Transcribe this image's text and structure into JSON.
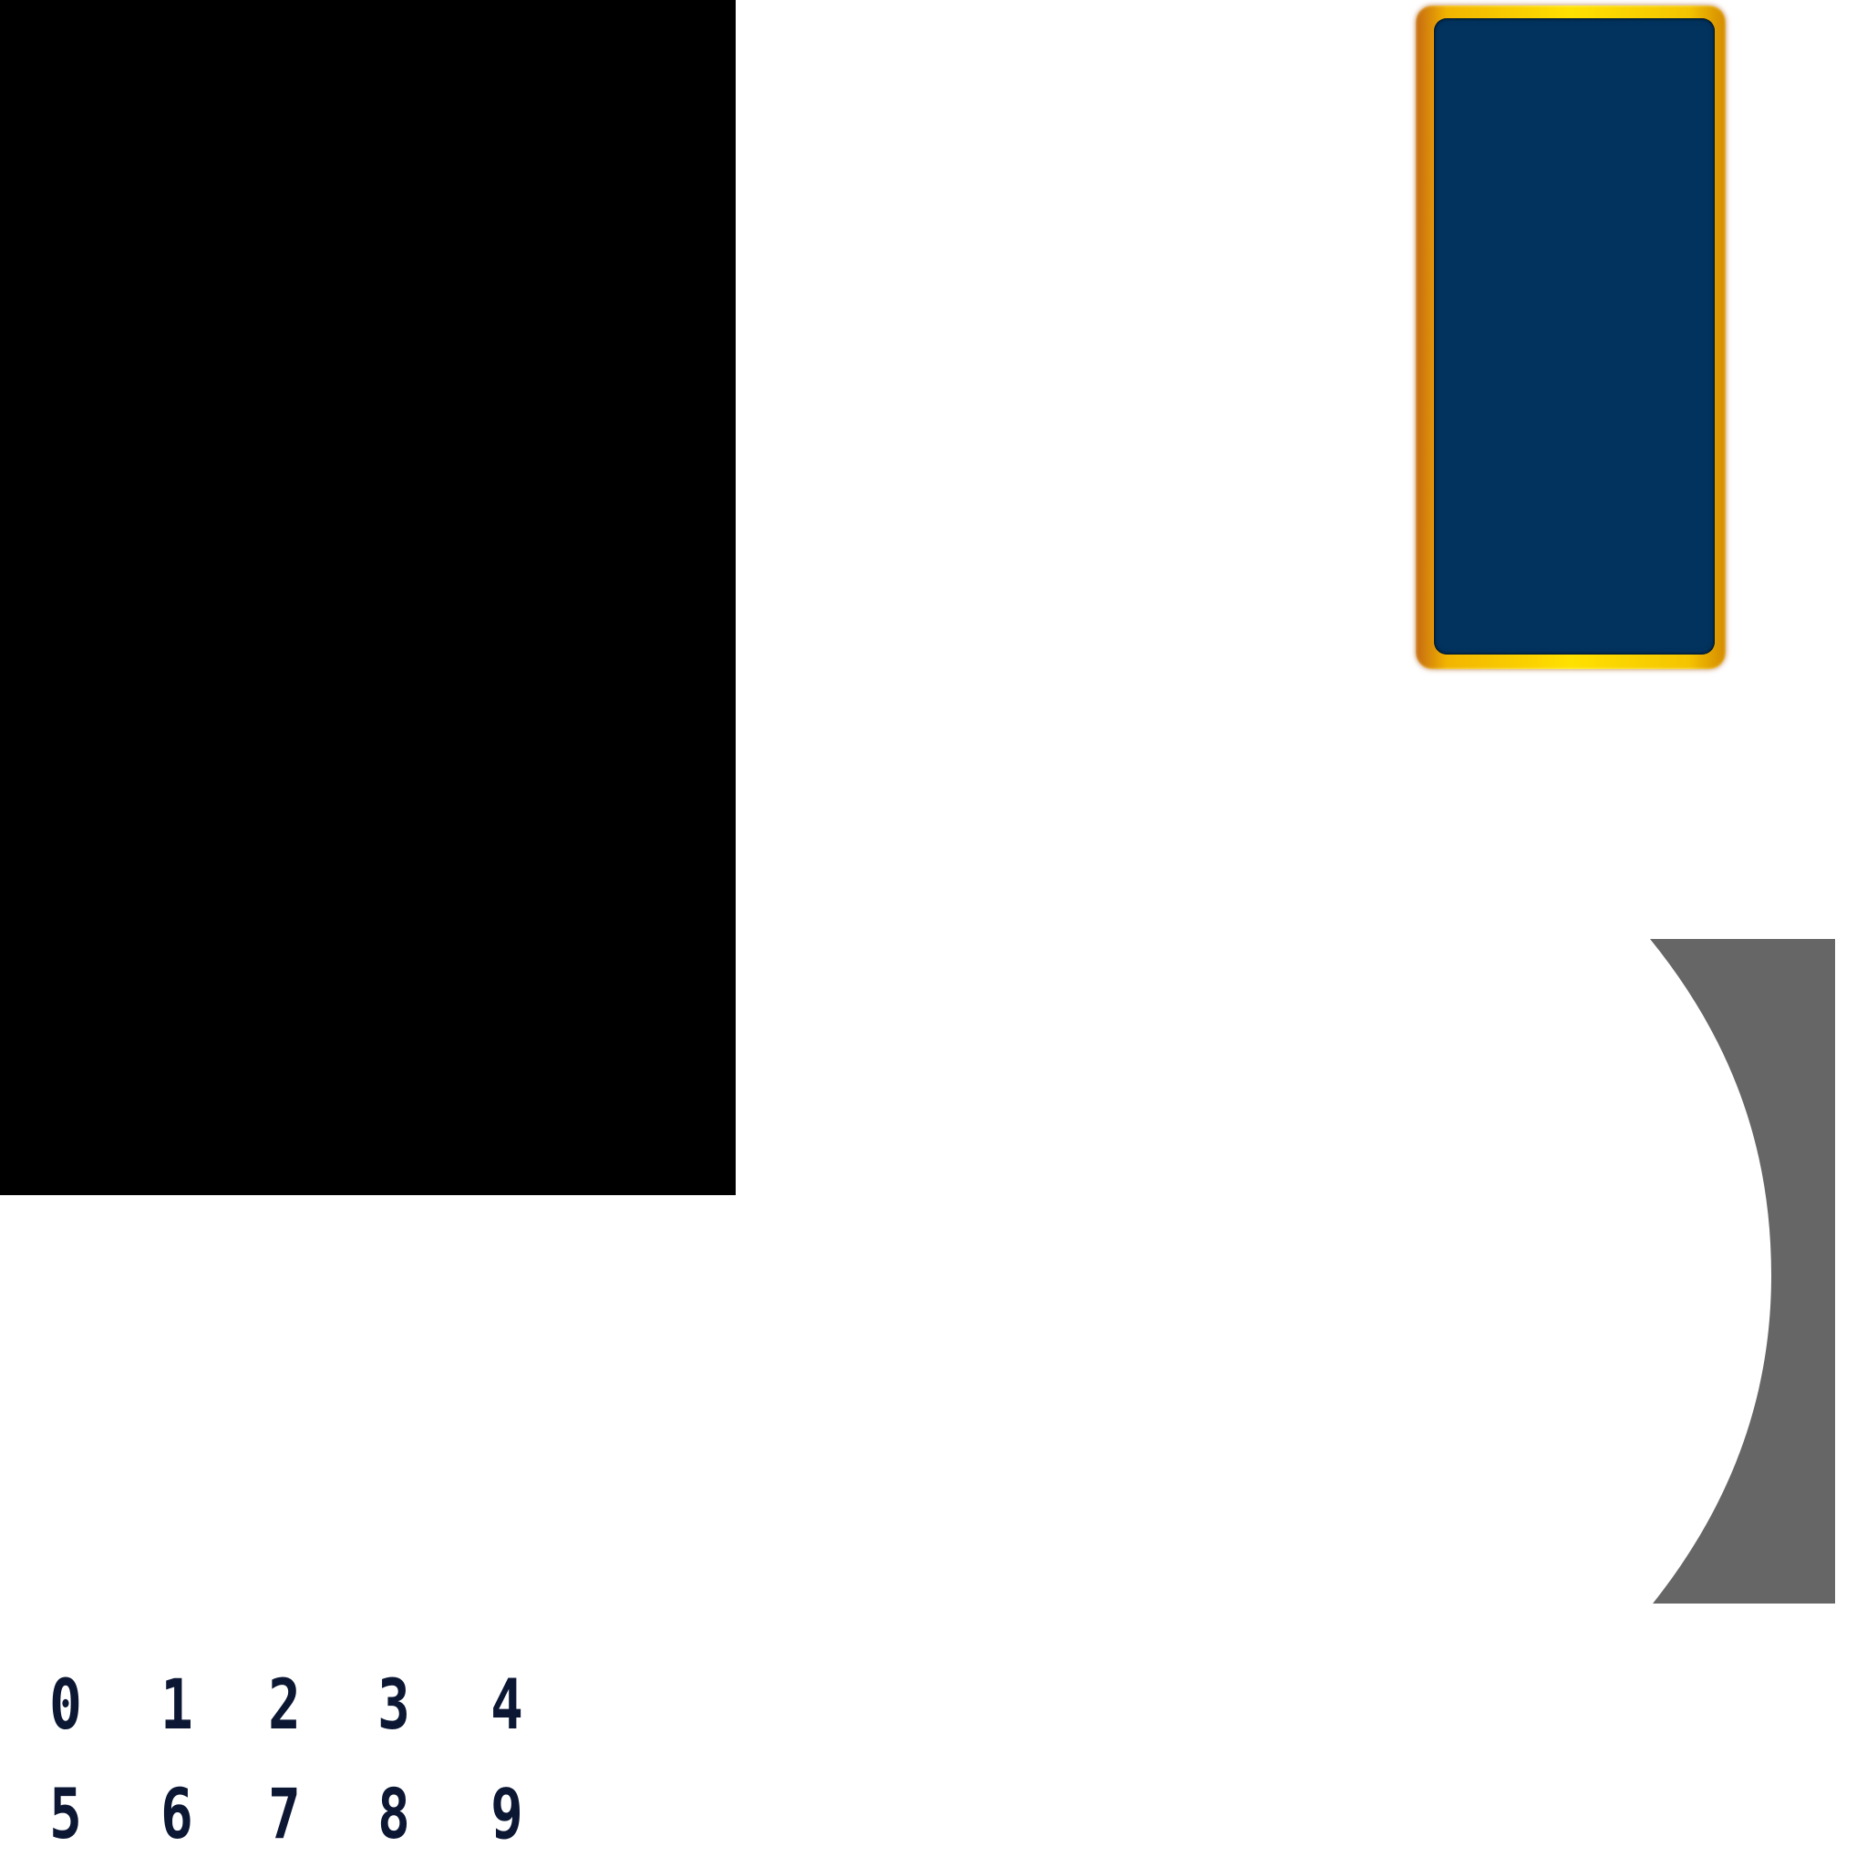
{
  "sprite_sheet": {
    "card": {
      "frame_color": "#ffe100",
      "fill_color": "#02335f"
    },
    "shape": {
      "fill_color": "#666666"
    },
    "digits": [
      "0",
      "1",
      "2",
      "3",
      "4",
      "5",
      "6",
      "7",
      "8",
      "9"
    ]
  }
}
